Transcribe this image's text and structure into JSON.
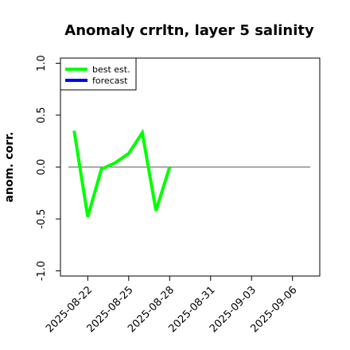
{
  "chart_data": {
    "type": "line",
    "title": "Anomaly crrltn, layer 5 salinity",
    "xlabel": "",
    "ylabel": "anom. corr.",
    "ylim": [
      -1.05,
      1.05
    ],
    "yticks": [
      -1.0,
      -0.5,
      0.0,
      0.5,
      1.0
    ],
    "ytick_labels": [
      "-1.0",
      "-0.5",
      "0.0",
      "0.5",
      "1.0"
    ],
    "xlim": [
      "2025-08-20",
      "2025-09-08"
    ],
    "xticks": [
      "2025-08-22",
      "2025-08-25",
      "2025-08-28",
      "2025-08-31",
      "2025-09-03",
      "2025-09-06"
    ],
    "xtick_labels": [
      "2025-08-22",
      "2025-08-25",
      "2025-08-28",
      "2025-08-31",
      "2025-09-03",
      "2025-09-06"
    ],
    "highlight_tick": "2025-08-28",
    "highlight_color": "#228b22",
    "legend_position": "top-left",
    "reference_line": 0.0,
    "series": [
      {
        "name": "best est.",
        "color": "#00ff00",
        "x": [
          "2025-08-21",
          "2025-08-22",
          "2025-08-23",
          "2025-08-24",
          "2025-08-25",
          "2025-08-26",
          "2025-08-27",
          "2025-08-28"
        ],
        "y": [
          0.35,
          -0.48,
          -0.02,
          0.04,
          0.13,
          0.33,
          -0.42,
          0.0
        ]
      },
      {
        "name": "forecast",
        "color": "#0000ff",
        "x": [],
        "y": []
      }
    ]
  }
}
